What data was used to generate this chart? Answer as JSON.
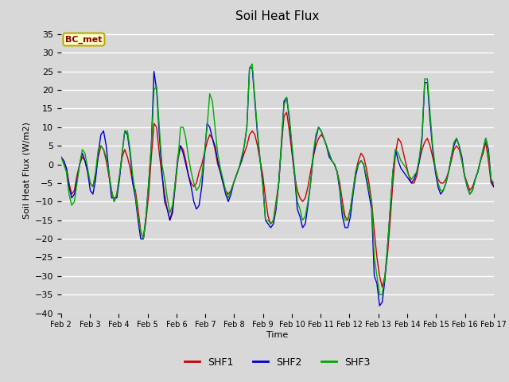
{
  "title": "Soil Heat Flux",
  "ylabel": "Soil Heat Flux (W/m2)",
  "xlabel": "Time",
  "ylim": [
    -40,
    37
  ],
  "yticks": [
    -40,
    -35,
    -30,
    -25,
    -20,
    -15,
    -10,
    -5,
    0,
    5,
    10,
    15,
    20,
    25,
    30,
    35
  ],
  "annotation_text": "BC_met",
  "annotation_facecolor": "#ffffcc",
  "annotation_edgecolor": "#bbaa00",
  "line_colors": [
    "#cc0000",
    "#0000cc",
    "#00aa00"
  ],
  "line_labels": [
    "SHF1",
    "SHF2",
    "SHF3"
  ],
  "background_color": "#d8d8d8",
  "grid_color": "#ffffff",
  "x_labels": [
    "Feb 2",
    "Feb 3",
    "Feb 4",
    "Feb 5",
    "Feb 6",
    "Feb 7",
    "Feb 8",
    "Feb 9",
    "Feb 10",
    "Feb 11",
    "Feb 12",
    "Feb 13",
    "Feb 14",
    "Feb 15",
    "Feb 16",
    "Feb 17"
  ],
  "shf1": [
    2,
    1,
    -1,
    -5,
    -8,
    -7,
    -3,
    0,
    2,
    1,
    -2,
    -5,
    -6,
    -3,
    2,
    5,
    4,
    1,
    -3,
    -7,
    -10,
    -8,
    -3,
    2,
    4,
    2,
    -1,
    -5,
    -7,
    -12,
    -18,
    -20,
    -15,
    -8,
    2,
    11,
    10,
    3,
    -3,
    -8,
    -12,
    -15,
    -12,
    -6,
    1,
    5,
    4,
    1,
    -3,
    -5,
    -6,
    -5,
    -2,
    0,
    3,
    6,
    8,
    7,
    4,
    0,
    -2,
    -5,
    -7,
    -8,
    -7,
    -5,
    -3,
    -1,
    1,
    3,
    5,
    8,
    9,
    8,
    5,
    1,
    -3,
    -9,
    -14,
    -16,
    -15,
    -10,
    -5,
    5,
    13,
    14,
    9,
    3,
    -3,
    -7,
    -9,
    -10,
    -9,
    -6,
    -2,
    2,
    5,
    7,
    8,
    7,
    5,
    3,
    1,
    0,
    -2,
    -5,
    -10,
    -14,
    -15,
    -12,
    -7,
    -2,
    1,
    3,
    2,
    -1,
    -5,
    -10,
    -18,
    -25,
    -30,
    -33,
    -30,
    -24,
    -15,
    -5,
    3,
    7,
    6,
    3,
    0,
    -3,
    -5,
    -5,
    -3,
    1,
    4,
    6,
    7,
    5,
    2,
    -1,
    -4,
    -5,
    -5,
    -4,
    -2,
    1,
    4,
    5,
    4,
    1,
    -3,
    -5,
    -7,
    -6,
    -4,
    -2,
    1,
    3,
    6,
    1,
    -5,
    -6
  ],
  "shf2": [
    2,
    1,
    -1,
    -6,
    -9,
    -8,
    -4,
    0,
    3,
    1,
    -2,
    -7,
    -8,
    -4,
    3,
    8,
    9,
    5,
    -2,
    -9,
    -9,
    -9,
    -4,
    3,
    9,
    8,
    3,
    -5,
    -9,
    -15,
    -20,
    -20,
    -14,
    -5,
    5,
    25,
    20,
    8,
    -2,
    -10,
    -12,
    -15,
    -13,
    -5,
    2,
    5,
    3,
    0,
    -3,
    -6,
    -10,
    -12,
    -11,
    -6,
    2,
    11,
    10,
    7,
    5,
    1,
    -2,
    -5,
    -8,
    -10,
    -8,
    -5,
    -3,
    -1,
    1,
    5,
    10,
    26,
    26,
    17,
    8,
    1,
    -5,
    -15,
    -16,
    -17,
    -16,
    -12,
    -5,
    5,
    17,
    18,
    12,
    4,
    -3,
    -12,
    -14,
    -17,
    -16,
    -11,
    -5,
    2,
    7,
    10,
    9,
    7,
    5,
    2,
    1,
    0,
    -2,
    -7,
    -14,
    -17,
    -17,
    -14,
    -8,
    -3,
    0,
    1,
    0,
    -4,
    -8,
    -12,
    -30,
    -32,
    -38,
    -37,
    -31,
    -22,
    -12,
    -2,
    4,
    1,
    -1,
    -2,
    -3,
    -4,
    -5,
    -4,
    -2,
    1,
    7,
    22,
    22,
    12,
    4,
    -2,
    -6,
    -8,
    -7,
    -5,
    -2,
    2,
    5,
    7,
    5,
    2,
    -3,
    -6,
    -8,
    -7,
    -4,
    -2,
    1,
    4,
    7,
    4,
    -4,
    -6
  ],
  "shf3": [
    2,
    0,
    -2,
    -8,
    -11,
    -10,
    -5,
    0,
    4,
    3,
    -1,
    -5,
    -6,
    -2,
    4,
    5,
    4,
    2,
    -2,
    -7,
    -10,
    -8,
    -3,
    3,
    9,
    9,
    4,
    -3,
    -8,
    -14,
    -18,
    -20,
    -14,
    -5,
    5,
    20,
    21,
    10,
    0,
    -4,
    -9,
    -13,
    -11,
    -5,
    1,
    10,
    10,
    7,
    2,
    -2,
    -5,
    -7,
    -6,
    -3,
    3,
    10,
    19,
    17,
    10,
    3,
    -1,
    -4,
    -7,
    -9,
    -7,
    -5,
    -3,
    -1,
    2,
    5,
    10,
    26,
    27,
    18,
    9,
    1,
    -6,
    -15,
    -15,
    -16,
    -15,
    -11,
    -5,
    6,
    16,
    18,
    13,
    5,
    -2,
    -10,
    -12,
    -15,
    -14,
    -10,
    -5,
    3,
    8,
    10,
    9,
    7,
    5,
    3,
    1,
    0,
    -2,
    -6,
    -12,
    -15,
    -15,
    -12,
    -7,
    -2,
    0,
    1,
    0,
    -3,
    -7,
    -10,
    -25,
    -30,
    -35,
    -35,
    -30,
    -22,
    -12,
    -2,
    4,
    3,
    1,
    0,
    -1,
    -3,
    -4,
    -3,
    -2,
    2,
    8,
    23,
    23,
    14,
    5,
    -1,
    -5,
    -7,
    -7,
    -5,
    -2,
    2,
    6,
    7,
    5,
    1,
    -3,
    -6,
    -8,
    -7,
    -4,
    -2,
    1,
    4,
    7,
    3,
    -4,
    -5
  ]
}
